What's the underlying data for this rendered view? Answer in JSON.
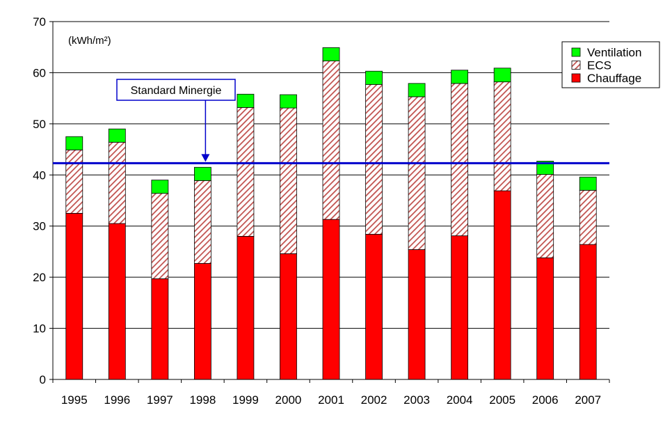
{
  "chart_data": {
    "type": "bar",
    "stacked": true,
    "unit_label": "(kWh/m²)",
    "categories": [
      "1995",
      "1996",
      "1997",
      "1998",
      "1999",
      "2000",
      "2001",
      "2002",
      "2003",
      "2004",
      "2005",
      "2006",
      "2007"
    ],
    "series": [
      {
        "name": "Chauffage",
        "color": "#ff0000",
        "pattern": "solid",
        "values": [
          32.5,
          30.5,
          19.7,
          22.7,
          28.0,
          24.6,
          31.3,
          28.4,
          25.4,
          28.1,
          36.9,
          23.8,
          26.4
        ]
      },
      {
        "name": "ECS",
        "color": "#c0504d",
        "pattern": "diagonal-hatch",
        "values": [
          12.4,
          15.9,
          16.7,
          16.2,
          25.2,
          28.5,
          31.0,
          29.3,
          29.9,
          29.8,
          21.3,
          16.3,
          10.6
        ]
      },
      {
        "name": "Ventilation",
        "color": "#00ff00",
        "pattern": "solid",
        "values": [
          2.6,
          2.6,
          2.6,
          2.6,
          2.6,
          2.6,
          2.6,
          2.6,
          2.6,
          2.6,
          2.7,
          2.6,
          2.6
        ]
      }
    ],
    "ylim": [
      0,
      70
    ],
    "yticks": [
      0,
      10,
      20,
      30,
      40,
      50,
      60,
      70
    ],
    "grid": true,
    "legend_position": "top-right",
    "legend_order": [
      "Ventilation",
      "ECS",
      "Chauffage"
    ],
    "reference_line": {
      "label": "Standard Minergie",
      "value": 42.3,
      "color": "#0000cc",
      "arrow_to_category": "1998"
    }
  }
}
